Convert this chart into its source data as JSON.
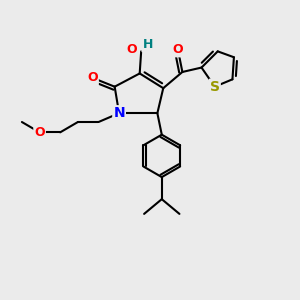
{
  "background_color": "#ebebeb",
  "atoms": {
    "colors": {
      "C": "#000000",
      "N": "#0000FF",
      "O": "#FF0000",
      "S": "#999900",
      "H": "#008080"
    }
  },
  "bond_color": "#000000",
  "bond_width": 1.5,
  "figsize": [
    3.0,
    3.0
  ],
  "dpi": 100,
  "xlim": [
    0,
    10
  ],
  "ylim": [
    0,
    10
  ]
}
